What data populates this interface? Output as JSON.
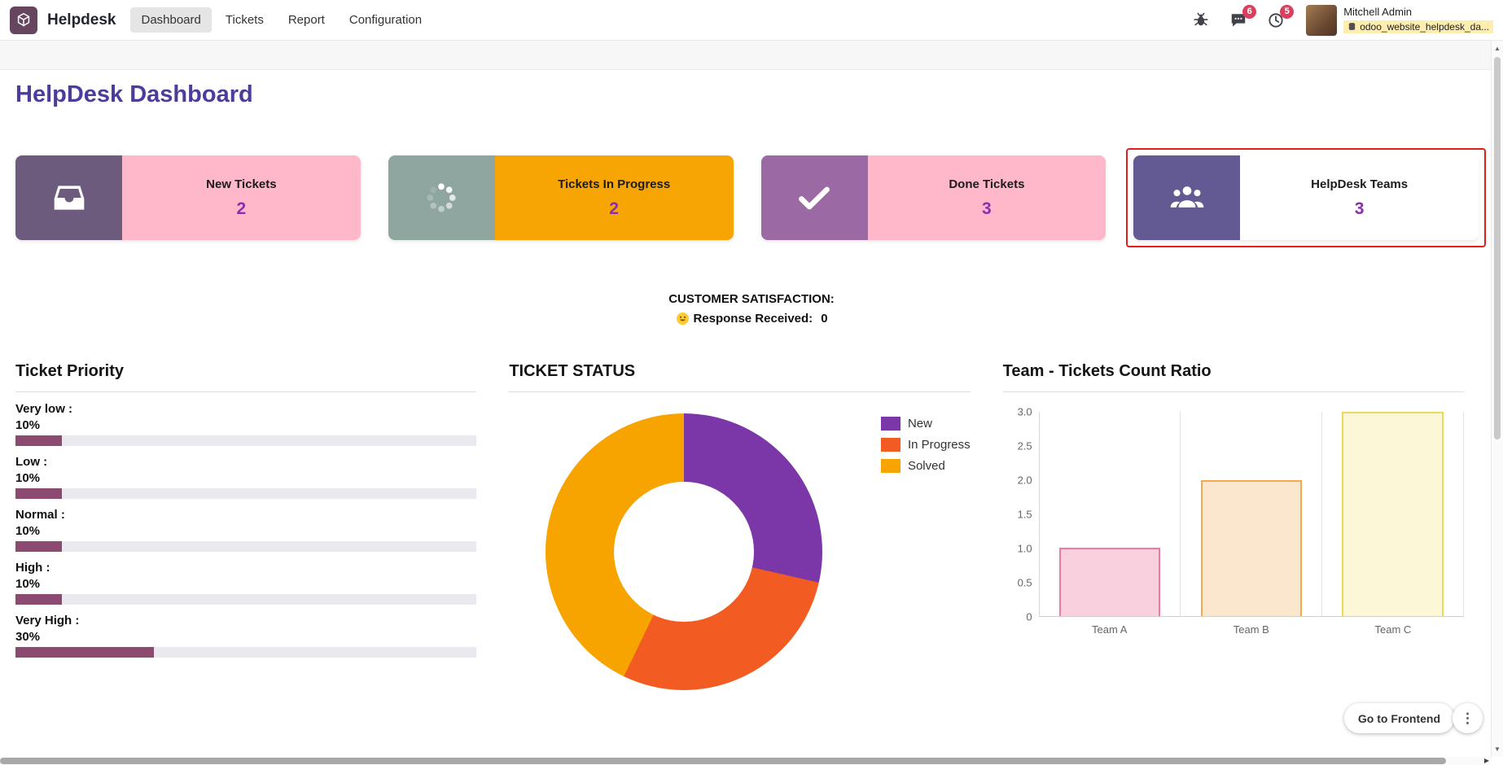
{
  "navbar": {
    "brand": "Helpdesk",
    "menu": [
      {
        "label": "Dashboard",
        "active": true
      },
      {
        "label": "Tickets",
        "active": false
      },
      {
        "label": "Report",
        "active": false
      },
      {
        "label": "Configuration",
        "active": false
      }
    ],
    "messages_badge": "6",
    "activities_badge": "5",
    "user_name": "Mitchell Admin",
    "database": "odoo_website_helpdesk_da..."
  },
  "page": {
    "title": "HelpDesk Dashboard"
  },
  "kpi_cards": [
    {
      "label": "New Tickets",
      "value": "2",
      "icon": "inbox-icon",
      "icon_bg": "#6c5b7c",
      "body_bg": "#ffb7ca",
      "highlighted": false
    },
    {
      "label": "Tickets In Progress",
      "value": "2",
      "icon": "spinner-icon",
      "icon_bg": "#8fa5a0",
      "body_bg": "#f6a502",
      "highlighted": false
    },
    {
      "label": "Done Tickets",
      "value": "3",
      "icon": "check-icon",
      "icon_bg": "#9b69a3",
      "body_bg": "#ffb7ca",
      "highlighted": false
    },
    {
      "label": "HelpDesk Teams",
      "value": "3",
      "icon": "users-icon",
      "icon_bg": "#635a94",
      "body_bg": "#ffffff",
      "highlighted": true
    }
  ],
  "satisfaction": {
    "title": "CUSTOMER SATISFACTION:",
    "emoji": "😃",
    "response_label": "Response Received:",
    "response_value": "0"
  },
  "chart_data": [
    {
      "type": "bar",
      "orientation": "horizontal",
      "title": "Ticket Priority",
      "categories": [
        "Very low :",
        "Low :",
        "Normal :",
        "High :",
        "Very High :"
      ],
      "values": [
        10,
        10,
        10,
        10,
        30
      ],
      "value_labels": [
        "10%",
        "10%",
        "10%",
        "10%",
        "30%"
      ],
      "xlim": [
        0,
        100
      ],
      "bar_color": "#8c4a70",
      "track_color": "#e9e9ef"
    },
    {
      "type": "pie",
      "donut": true,
      "title": "TICKET STATUS",
      "labels": [
        "New",
        "In Progress",
        "Solved"
      ],
      "values": [
        2,
        2,
        3
      ],
      "colors": [
        "#7b37a8",
        "#f25c22",
        "#f7a400"
      ],
      "legend_position": "right"
    },
    {
      "type": "bar",
      "title": "Team - Tickets Count Ratio",
      "categories": [
        "Team A",
        "Team B",
        "Team C"
      ],
      "values": [
        1,
        2,
        3
      ],
      "ylim": [
        0,
        3
      ],
      "yticks": [
        "3.0",
        "2.5",
        "2.0",
        "1.5",
        "1.0",
        "0.5",
        "0"
      ],
      "bar_fills": [
        "#f9d0de",
        "#fbe7cd",
        "#fcf7d6"
      ],
      "bar_borders": [
        "#f078a4",
        "#f4a84f",
        "#ecd95c"
      ],
      "grid": "vertical"
    }
  ],
  "footer": {
    "frontend_button": "Go to Frontend"
  },
  "icons": {
    "kebab": "⋮",
    "scroll_up": "▲",
    "scroll_down": "▼",
    "scroll_right": "▶"
  },
  "colors": {
    "title": "#4b3d9c",
    "kpi_value": "#8a30ad",
    "badge": "#db3f5e",
    "highlight_border": "#e01e1e"
  }
}
